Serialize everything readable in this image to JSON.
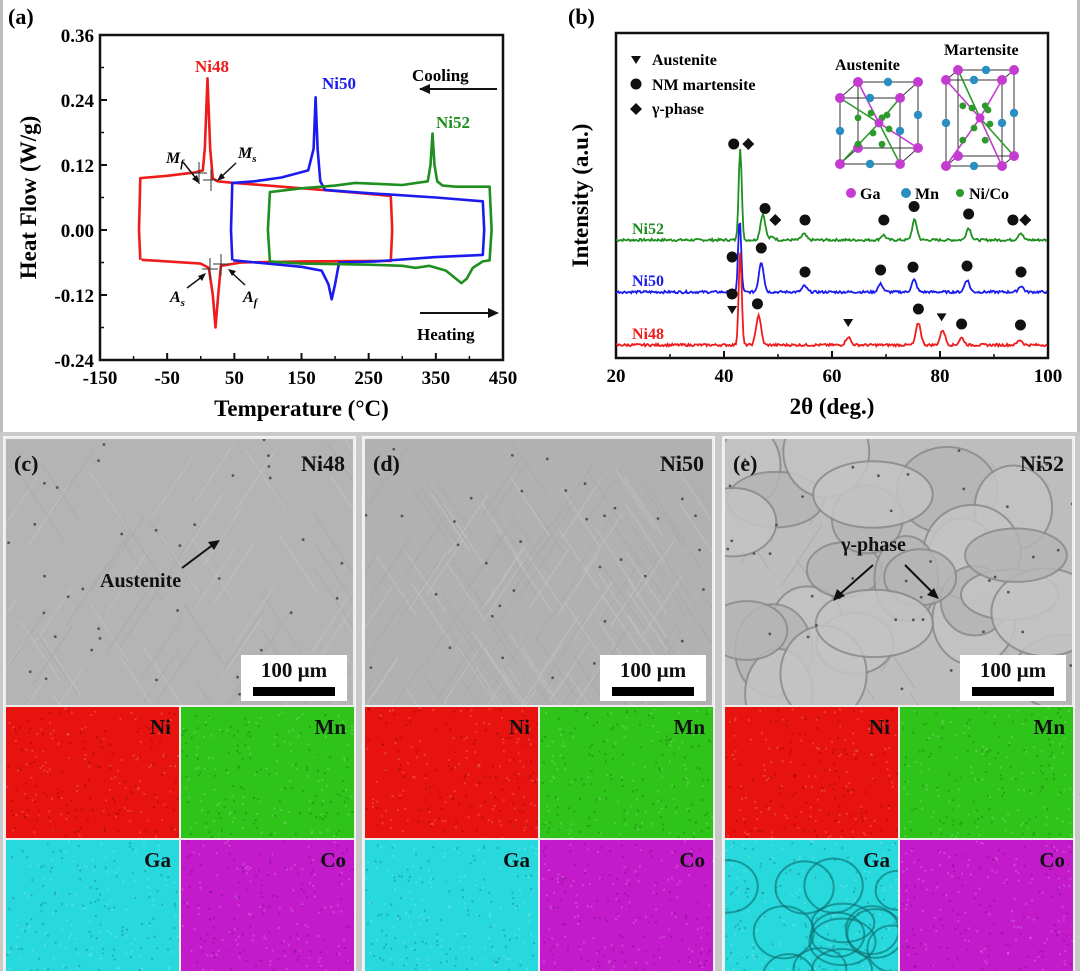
{
  "panels": {
    "a": {
      "label": "(a)",
      "series_labels": {
        "ni48": "Ni48",
        "ni50": "Ni50",
        "ni52": "Ni52"
      },
      "annotations": {
        "mf": "M",
        "mf_sub": "f",
        "ms": "M",
        "ms_sub": "s",
        "as": "A",
        "as_sub": "s",
        "af": "A",
        "af_sub": "f"
      },
      "direction_labels": {
        "cooling": "Cooling",
        "heating": "Heating"
      }
    },
    "b": {
      "label": "(b)",
      "legend": [
        {
          "symbol": "triangle-down",
          "label": "Austenite"
        },
        {
          "symbol": "circle",
          "label": "NM martensite"
        },
        {
          "symbol": "diamond",
          "label": "γ-phase"
        }
      ],
      "inset": {
        "austenite_title": "Austenite",
        "martensite_title": "Martensite",
        "atoms": [
          {
            "name": "Ga",
            "color": "#c43ccf"
          },
          {
            "name": "Mn",
            "color": "#2a8fc0"
          },
          {
            "name": "Ni/Co",
            "color": "#2e9a2e"
          }
        ]
      }
    },
    "c": {
      "label": "(c)",
      "sample": "Ni48",
      "annotation": "Austenite",
      "scalebar": "100 µm",
      "eds": [
        "Ni",
        "Mn",
        "Ga",
        "Co"
      ]
    },
    "d": {
      "label": "(d)",
      "sample": "Ni50",
      "scalebar": "100 µm",
      "eds": [
        "Ni",
        "Mn",
        "Ga",
        "Co"
      ]
    },
    "e": {
      "label": "(e)",
      "sample": "Ni52",
      "annotation": "γ-phase",
      "scalebar": "100 µm",
      "eds": [
        "Ni",
        "Mn",
        "Ga",
        "Co"
      ]
    }
  },
  "eds_colors": {
    "Ni": "#e8120f",
    "Mn": "#2fc41a",
    "Ga": "#27d8dc",
    "Co": "#c31bcc"
  },
  "chart_data": [
    {
      "id": "a",
      "type": "line",
      "title": "",
      "xlabel": "Temperature (°C)",
      "ylabel": "Heat Flow (W/g)",
      "xlim": [
        -150,
        450
      ],
      "ylim": [
        -0.24,
        0.36
      ],
      "xticks": [
        -150,
        -50,
        50,
        150,
        250,
        350,
        450
      ],
      "yticks": [
        -0.24,
        -0.12,
        0.0,
        0.12,
        0.24,
        0.36
      ],
      "grid": false,
      "series": [
        {
          "name": "Ni48",
          "color": "#ef1c1c",
          "cooling": [
            [
              283,
              0.063
            ],
            [
              200,
              0.072
            ],
            [
              100,
              0.082
            ],
            [
              50,
              0.087
            ],
            [
              25,
              0.09
            ],
            [
              18,
              0.095
            ],
            [
              14,
              0.15
            ],
            [
              10,
              0.28
            ],
            [
              6,
              0.15
            ],
            [
              3,
              0.11
            ],
            [
              -10,
              0.106
            ],
            [
              -50,
              0.1
            ],
            [
              -88,
              0.096
            ]
          ],
          "heating": [
            [
              -88,
              -0.055
            ],
            [
              -50,
              -0.058
            ],
            [
              0,
              -0.062
            ],
            [
              12,
              -0.07
            ],
            [
              18,
              -0.12
            ],
            [
              22,
              -0.18
            ],
            [
              26,
              -0.12
            ],
            [
              30,
              -0.066
            ],
            [
              60,
              -0.06
            ],
            [
              150,
              -0.058
            ],
            [
              283,
              -0.057
            ]
          ],
          "ends": [
            [
              -90,
              0.096
            ],
            [
              -92,
              0.0
            ],
            [
              -90,
              -0.055
            ]
          ],
          "turn": [
            [
              283,
              0.063
            ],
            [
              285,
              0.0
            ],
            [
              283,
              -0.057
            ]
          ]
        },
        {
          "name": "Ni50",
          "color": "#1b1bef",
          "cooling": [
            [
              420,
              0.053
            ],
            [
              350,
              0.06
            ],
            [
              250,
              0.068
            ],
            [
              185,
              0.074
            ],
            [
              178,
              0.09
            ],
            [
              174,
              0.15
            ],
            [
              171,
              0.245
            ],
            [
              168,
              0.15
            ],
            [
              160,
              0.11
            ],
            [
              120,
              0.097
            ],
            [
              80,
              0.09
            ],
            [
              48,
              0.087
            ]
          ],
          "heating": [
            [
              48,
              -0.056
            ],
            [
              100,
              -0.062
            ],
            [
              150,
              -0.068
            ],
            [
              180,
              -0.075
            ],
            [
              190,
              -0.1
            ],
            [
              195,
              -0.128
            ],
            [
              200,
              -0.1
            ],
            [
              206,
              -0.06
            ],
            [
              260,
              -0.058
            ],
            [
              350,
              -0.05
            ],
            [
              420,
              -0.046
            ]
          ],
          "ends": [
            [
              47,
              0.087
            ],
            [
              45,
              0.0
            ],
            [
              47,
              -0.056
            ]
          ],
          "turn": [
            [
              420,
              0.053
            ],
            [
              422,
              0.0
            ],
            [
              420,
              -0.046
            ]
          ]
        },
        {
          "name": "Ni52",
          "color": "#1f8f1f",
          "cooling": [
            [
              430,
              0.08
            ],
            [
              380,
              0.08
            ],
            [
              360,
              0.082
            ],
            [
              352,
              0.09
            ],
            [
              348,
              0.12
            ],
            [
              345,
              0.178
            ],
            [
              342,
              0.12
            ],
            [
              338,
              0.09
            ],
            [
              300,
              0.083
            ],
            [
              230,
              0.087
            ],
            [
              200,
              0.082
            ],
            [
              150,
              0.077
            ],
            [
              103,
              0.07
            ]
          ],
          "heating": [
            [
              103,
              -0.058
            ],
            [
              150,
              -0.062
            ],
            [
              200,
              -0.063
            ],
            [
              250,
              -0.064
            ],
            [
              300,
              -0.066
            ],
            [
              320,
              -0.07
            ],
            [
              340,
              -0.066
            ],
            [
              365,
              -0.075
            ],
            [
              380,
              -0.09
            ],
            [
              388,
              -0.098
            ],
            [
              396,
              -0.09
            ],
            [
              405,
              -0.07
            ],
            [
              420,
              -0.058
            ],
            [
              430,
              -0.056
            ]
          ],
          "ends": [
            [
              103,
              0.07
            ],
            [
              100,
              0.0
            ],
            [
              103,
              -0.058
            ]
          ],
          "turn": [
            [
              430,
              0.08
            ],
            [
              433,
              0.0
            ],
            [
              430,
              -0.056
            ]
          ]
        }
      ]
    },
    {
      "id": "b",
      "type": "line",
      "title": "",
      "xlabel": "2θ (deg.)",
      "ylabel": "Intensity (a.u.)",
      "xlim": [
        20,
        100
      ],
      "xticks": [
        20,
        40,
        60,
        80,
        100
      ],
      "yticks": [],
      "grid": false,
      "series": [
        {
          "name": "Ni52",
          "color": "#1f8f1f",
          "offset": 2,
          "peaks": [
            [
              43.0,
              4.6
            ],
            [
              47.2,
              1.3
            ],
            [
              49.0,
              0.15
            ],
            [
              54.8,
              0.3
            ],
            [
              69.5,
              0.25
            ],
            [
              75.3,
              1.0
            ],
            [
              85.3,
              0.6
            ],
            [
              94.9,
              0.35
            ]
          ],
          "markers": [
            {
              "x": 41.8,
              "symbol": "circle"
            },
            {
              "x": 44.5,
              "symbol": "diamond"
            },
            {
              "x": 47.6,
              "symbol": "circle"
            },
            {
              "x": 49.5,
              "symbol": "diamond"
            },
            {
              "x": 55.0,
              "symbol": "circle"
            },
            {
              "x": 69.6,
              "symbol": "circle"
            },
            {
              "x": 75.2,
              "symbol": "circle"
            },
            {
              "x": 85.3,
              "symbol": "circle"
            },
            {
              "x": 93.5,
              "symbol": "circle"
            },
            {
              "x": 95.8,
              "symbol": "diamond"
            }
          ]
        },
        {
          "name": "Ni50",
          "color": "#1b1bef",
          "offset": 1,
          "peaks": [
            [
              42.9,
              3.6
            ],
            [
              46.9,
              1.5
            ],
            [
              54.9,
              0.3
            ],
            [
              69.0,
              0.4
            ],
            [
              75.2,
              0.6
            ],
            [
              85.0,
              0.6
            ],
            [
              95.0,
              0.3
            ]
          ],
          "markers": [
            {
              "x": 41.5,
              "symbol": "circle"
            },
            {
              "x": 46.9,
              "symbol": "circle"
            },
            {
              "x": 55.0,
              "symbol": "circle"
            },
            {
              "x": 69.0,
              "symbol": "circle"
            },
            {
              "x": 75.0,
              "symbol": "circle"
            },
            {
              "x": 85.0,
              "symbol": "circle"
            },
            {
              "x": 95.0,
              "symbol": "circle"
            }
          ]
        },
        {
          "name": "Ni48",
          "color": "#ef1c1c",
          "offset": 0,
          "peaks": [
            [
              43.0,
              4.6
            ],
            [
              46.4,
              1.5
            ],
            [
              63.0,
              0.4
            ],
            [
              76.0,
              1.1
            ],
            [
              80.5,
              0.75
            ],
            [
              84.0,
              0.35
            ],
            [
              94.8,
              0.25
            ]
          ],
          "markers": [
            {
              "x": 41.5,
              "symbol": "triangle-down"
            },
            {
              "x": 41.5,
              "symbol": "circle"
            },
            {
              "x": 46.2,
              "symbol": "circle"
            },
            {
              "x": 63.0,
              "symbol": "triangle-down"
            },
            {
              "x": 76.0,
              "symbol": "circle"
            },
            {
              "x": 80.3,
              "symbol": "triangle-down"
            },
            {
              "x": 84.0,
              "symbol": "circle"
            },
            {
              "x": 94.9,
              "symbol": "circle"
            }
          ]
        }
      ]
    }
  ]
}
